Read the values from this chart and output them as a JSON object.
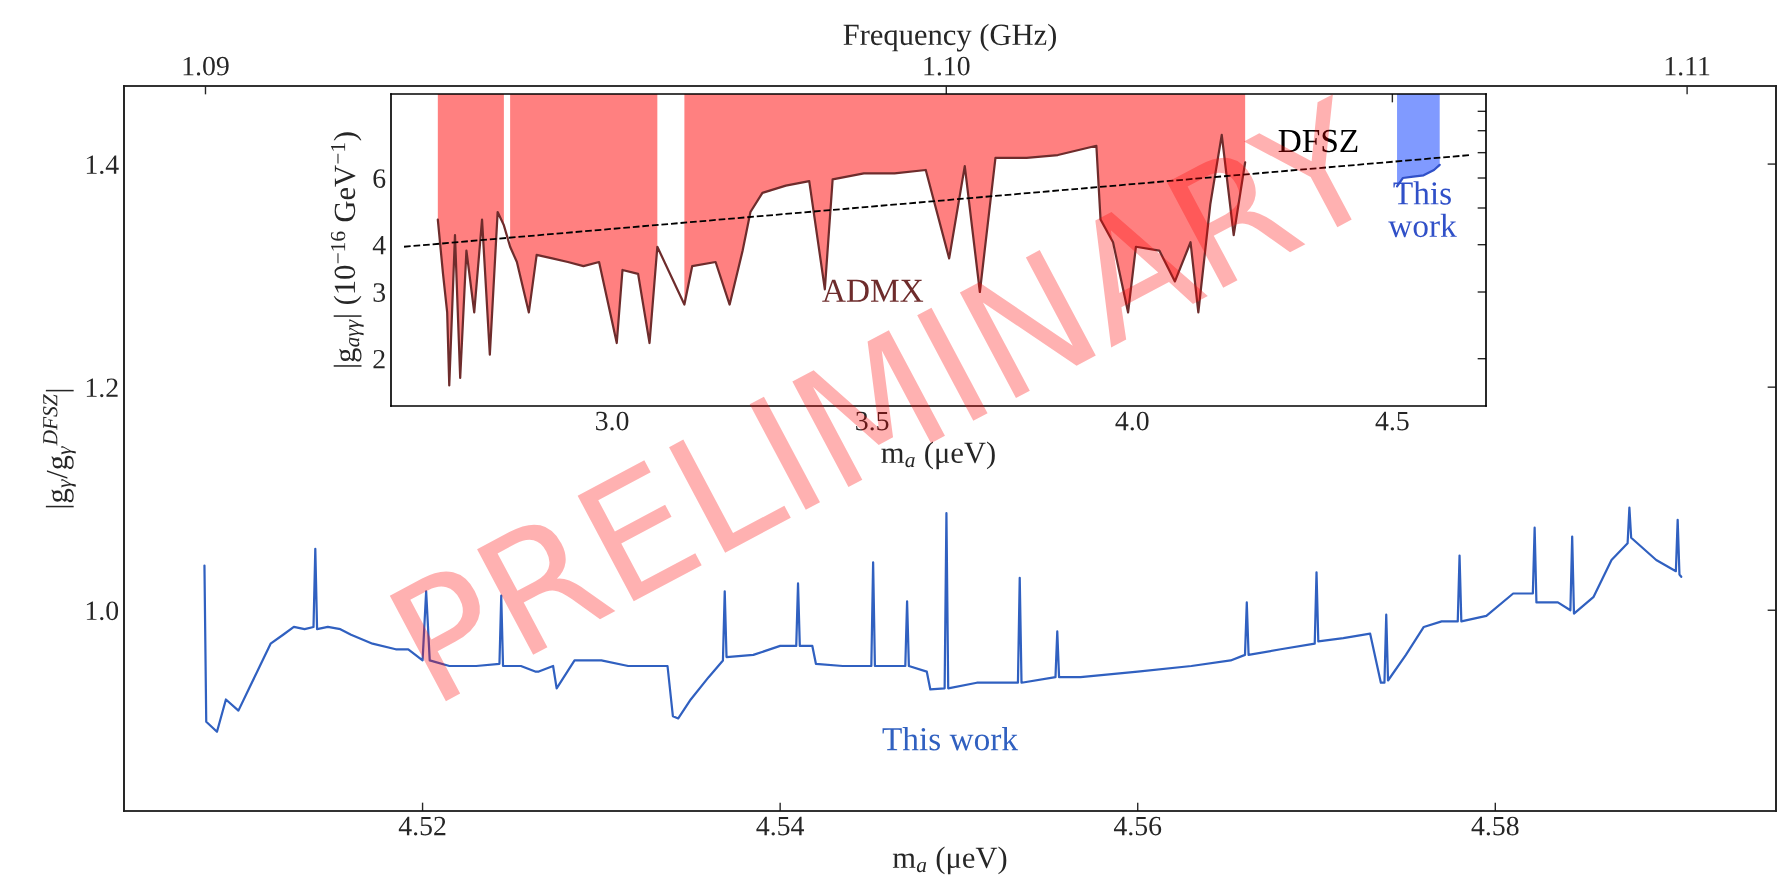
{
  "chart_data": [
    {
      "type": "line",
      "xlabel": "m$_{a}$ (μeV)",
      "ylabel": "|g$_{γ}$/g$_{γ}$$^{DFSZ}$|",
      "x2label": "Frequency (GHz)",
      "xlim": [
        4.5033,
        4.5957
      ],
      "xticks": [
        4.52,
        4.54,
        4.56,
        4.58
      ],
      "ylim": [
        0.82,
        1.47
      ],
      "yticks": [
        {
          "value": 1.0,
          "label": "1.0"
        },
        {
          "value": 1.2,
          "label": "1.2"
        },
        {
          "value": 1.4,
          "label": "1.4"
        }
      ],
      "x2lim": [
        1.0889,
        1.1112
      ],
      "x2ticks": [
        1.09,
        {
          "value": 1.1,
          "label": "1.10"
        },
        1.11
      ],
      "annotations": [
        "PRELIMINARY"
      ],
      "series": [
        {
          "name": "This work",
          "color": "#3060c0",
          "x": [
            4.5078,
            4.5079,
            4.5085,
            4.509,
            4.5097,
            4.5103,
            4.5109,
            4.5115,
            4.5122,
            4.5128,
            4.5134,
            4.5139,
            4.514,
            4.5141,
            4.5147,
            4.5154,
            4.516,
            4.5172,
            4.5185,
            4.5192,
            4.52,
            4.5202,
            4.5204,
            4.5215,
            4.523,
            4.5243,
            4.5244,
            4.5245,
            4.5255,
            4.5263,
            4.5265,
            4.5273,
            4.5275,
            4.5285,
            4.53,
            4.5315,
            4.533,
            4.5337,
            4.534,
            4.5343,
            4.535,
            4.536,
            4.5368,
            4.5369,
            4.537,
            4.5385,
            4.54,
            4.5409,
            4.541,
            4.5411,
            4.5418,
            4.542,
            4.5435,
            4.5451,
            4.5452,
            4.5453,
            4.5465,
            4.547,
            4.5471,
            4.5472,
            4.5482,
            4.5484,
            4.5492,
            4.5493,
            4.5494,
            4.551,
            4.5533,
            4.5534,
            4.5535,
            4.5554,
            4.5555,
            4.5556,
            4.5568,
            4.56,
            4.563,
            4.5652,
            4.566,
            4.5661,
            4.5662,
            4.568,
            4.5699,
            4.57,
            4.5701,
            4.5715,
            4.573,
            4.5736,
            4.5738,
            4.5739,
            4.574,
            4.575,
            4.576,
            4.577,
            4.5779,
            4.578,
            4.5781,
            4.5795,
            4.581,
            4.5821,
            4.5822,
            4.5823,
            4.5835,
            4.5842,
            4.5843,
            4.5844,
            4.5855,
            4.5865,
            4.5874,
            4.5875,
            4.5876,
            4.589,
            4.5901,
            4.5902,
            4.5903,
            4.5904
          ],
          "values": [
            1.04,
            0.9,
            0.891,
            0.92,
            0.91,
            0.93,
            0.95,
            0.97,
            0.978,
            0.985,
            0.983,
            0.985,
            1.055,
            0.983,
            0.985,
            0.983,
            0.978,
            0.97,
            0.965,
            0.965,
            0.955,
            1.017,
            0.955,
            0.95,
            0.95,
            0.952,
            1.013,
            0.95,
            0.95,
            0.945,
            0.945,
            0.95,
            0.93,
            0.955,
            0.955,
            0.95,
            0.95,
            0.95,
            0.905,
            0.903,
            0.92,
            0.94,
            0.955,
            1.017,
            0.958,
            0.96,
            0.968,
            0.968,
            1.024,
            0.968,
            0.968,
            0.952,
            0.95,
            0.95,
            1.043,
            0.95,
            0.95,
            0.95,
            1.008,
            0.95,
            0.945,
            0.929,
            0.93,
            1.087,
            0.93,
            0.935,
            0.935,
            1.029,
            0.935,
            0.94,
            0.981,
            0.94,
            0.94,
            0.945,
            0.95,
            0.955,
            0.96,
            1.007,
            0.96,
            0.965,
            0.97,
            1.034,
            0.972,
            0.975,
            0.979,
            0.935,
            0.935,
            0.996,
            0.937,
            0.96,
            0.985,
            0.99,
            0.99,
            1.049,
            0.99,
            0.995,
            1.015,
            1.015,
            1.074,
            1.007,
            1.007,
            1.0,
            1.066,
            0.997,
            1.012,
            1.045,
            1.06,
            1.092,
            1.065,
            1.045,
            1.035,
            1.081,
            1.032,
            1.03
          ]
        }
      ]
    },
    {
      "type": "line",
      "xlabel": "m$_{a}$ (μeV)",
      "ylabel": "|g$_{aγγ}$| (10$^{−16}$ GeV$^{−1}$)",
      "log": "y",
      "xlim": [
        2.575,
        4.68
      ],
      "xticks": [
        {
          "value": 3.0,
          "label": "3.0"
        },
        3.5,
        {
          "value": 4.0,
          "label": "4.0"
        },
        4.5
      ],
      "ylim": [
        1.5,
        10
      ],
      "yticks": [
        2,
        3,
        4,
        {
          "value": 5,
          "label": null
        },
        6,
        {
          "value": 7,
          "label": null
        },
        {
          "value": 8,
          "label": null
        },
        {
          "value": 9,
          "label": null
        }
      ],
      "series": [
        {
          "name": "ADMX",
          "color": "#6e2c2c",
          "x": [
            2.665,
            2.675,
            2.683,
            2.687,
            2.698,
            2.708,
            2.72,
            2.735,
            2.75,
            2.765,
            2.78,
            2.792,
            2.798,
            2.804,
            2.817,
            2.84,
            2.855,
            2.885,
            2.915,
            2.945,
            2.975,
            3.009,
            3.02,
            3.05,
            3.072,
            3.087,
            3.11,
            3.139,
            3.154,
            3.199,
            3.226,
            3.251,
            3.266,
            3.289,
            3.334,
            3.379,
            3.409,
            3.424,
            3.484,
            3.543,
            3.603,
            3.648,
            3.678,
            3.707,
            3.737,
            3.797,
            3.857,
            3.931,
            3.939,
            3.963,
            3.992,
            4.007,
            4.052,
            4.082,
            4.112,
            4.127,
            4.15,
            4.172,
            4.195,
            4.217
          ],
          "values": [
            4.66,
            3.35,
            2.65,
            1.7,
            4.24,
            1.78,
            3.86,
            2.65,
            4.66,
            2.05,
            4.88,
            4.5,
            null,
            3.95,
            3.6,
            2.65,
            3.76,
            3.68,
            3.6,
            3.51,
            3.6,
            2.2,
            3.43,
            3.35,
            2.2,
            3.95,
            null,
            2.78,
            3.51,
            3.6,
            2.78,
            3.86,
            4.88,
            5.48,
            5.73,
            5.89,
            3.05,
            5.95,
            6.17,
            6.17,
            6.3,
            3.68,
            6.45,
            3.0,
            6.78,
            6.78,
            6.9,
            7.3,
            4.66,
            4.06,
            2.65,
            3.95,
            3.86,
            3.2,
            4.06,
            2.65,
            5.11,
            7.8,
            4.24,
            6.6
          ]
        },
        {
          "name": "DFSZ",
          "color": "#000000",
          "line_style": "dashed",
          "x": [
            2.6,
            4.651
          ],
          "values": [
            3.95,
            6.9
          ]
        },
        {
          "name": "This\nwork",
          "color": "#3050c8",
          "x": [
            4.509,
            4.52,
            4.54,
            4.56,
            4.58,
            4.591
          ],
          "values": [
            5.7,
            6.0,
            6.05,
            6.1,
            6.3,
            6.5
          ]
        }
      ]
    }
  ]
}
